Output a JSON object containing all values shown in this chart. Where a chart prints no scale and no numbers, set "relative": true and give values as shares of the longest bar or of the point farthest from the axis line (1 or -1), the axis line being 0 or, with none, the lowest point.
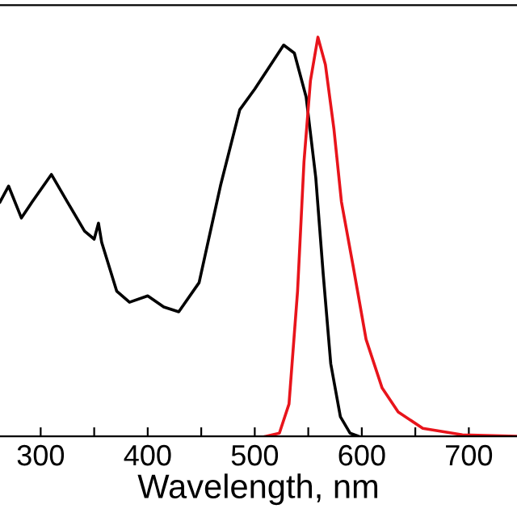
{
  "chart_data": {
    "type": "line",
    "xlabel": "Wavelength, nm",
    "relative": true,
    "xlim": [
      262,
      745
    ],
    "xticks": [
      300,
      {
        "value": 350,
        "label": null
      },
      400,
      {
        "value": 450,
        "label": null
      },
      500,
      {
        "value": 550,
        "label": null
      },
      600,
      {
        "value": 650,
        "label": null
      },
      700
    ],
    "grid": false,
    "line_style": "solid",
    "marker": "none",
    "series": [
      {
        "color": "#000000",
        "x": [
          262,
          270,
          282,
          292,
          310,
          325,
          341,
          350,
          354,
          357,
          371,
          383,
          400,
          415,
          429,
          448,
          468,
          486,
          500,
          515,
          527,
          537,
          548,
          557,
          564,
          571,
          580,
          589,
          597
        ],
        "values": [
          0.587,
          0.627,
          0.547,
          0.587,
          0.656,
          0.587,
          0.514,
          0.494,
          0.534,
          0.486,
          0.364,
          0.336,
          0.352,
          0.324,
          0.312,
          0.385,
          0.628,
          0.818,
          0.87,
          0.931,
          0.98,
          0.96,
          0.85,
          0.648,
          0.405,
          0.182,
          0.049,
          0.008,
          0
        ]
      },
      {
        "color": "#e8141b",
        "x": [
          510,
          523,
          532,
          540,
          546,
          552,
          559,
          566,
          574,
          581,
          592,
          604,
          619,
          634,
          657,
          694,
          745
        ],
        "values": [
          0,
          0.008,
          0.081,
          0.364,
          0.688,
          0.89,
          1.0,
          0.931,
          0.769,
          0.587,
          0.425,
          0.243,
          0.121,
          0.061,
          0.02,
          0.004,
          0
        ]
      }
    ]
  }
}
